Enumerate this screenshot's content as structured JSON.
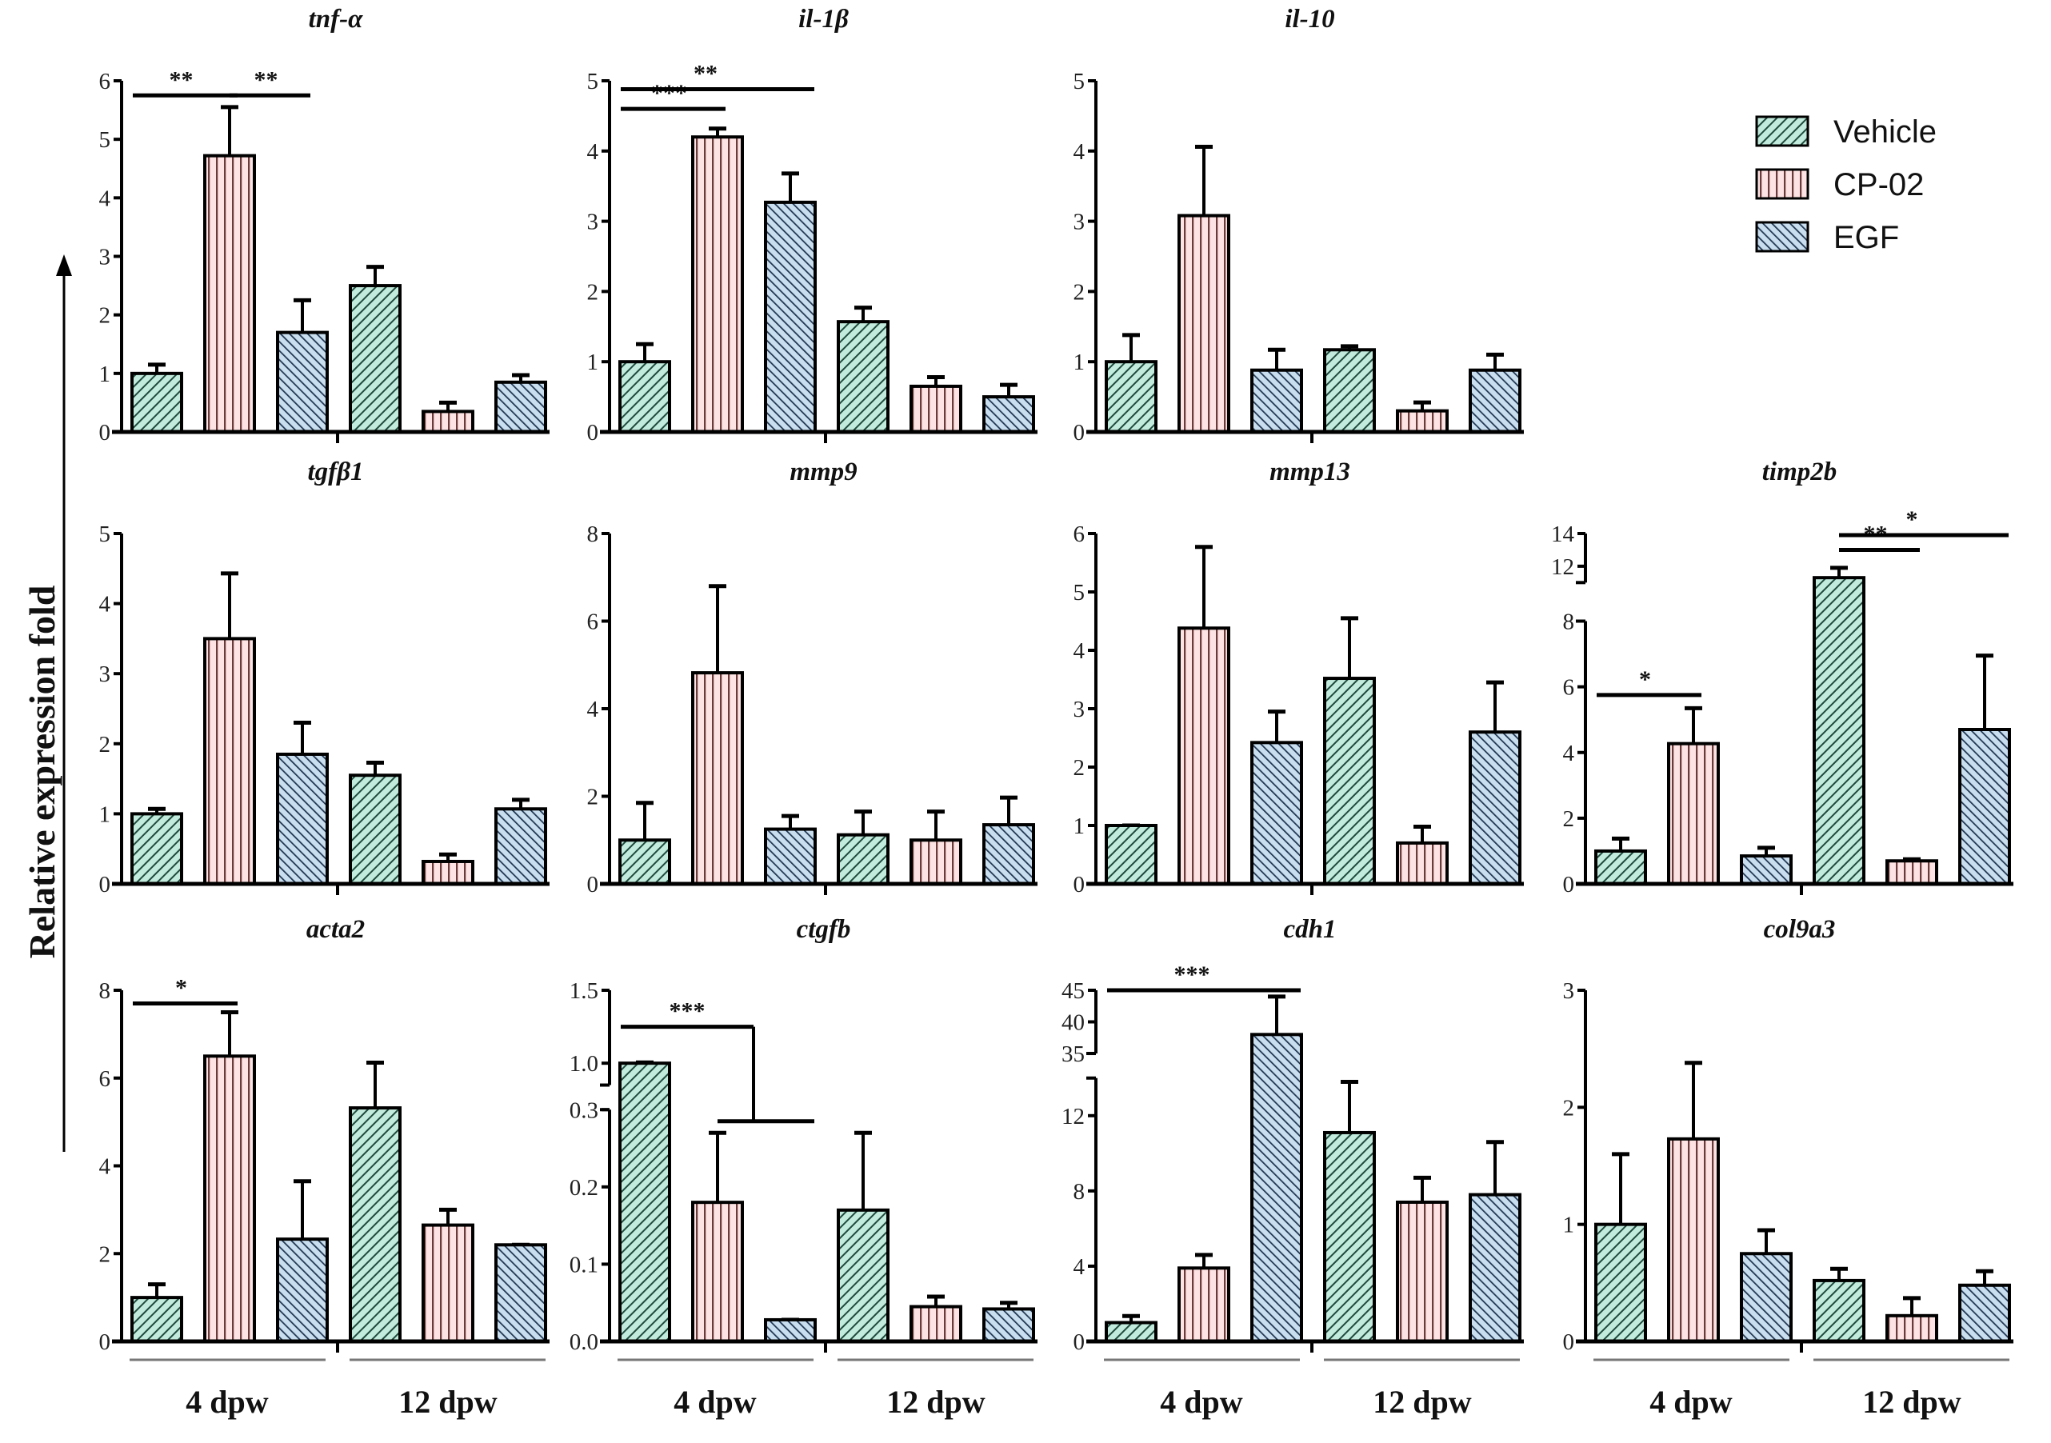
{
  "colors": {
    "vehicle_fill": "#c3ebdd",
    "vehicle_line": "#1f4a3d",
    "cp02_fill": "#fde3e3",
    "cp02_line": "#6b3a3a",
    "egf_fill": "#c9deee",
    "egf_line": "#1f3550",
    "axis": "#000000"
  },
  "chart_data": {
    "type": "bar",
    "ylabel": "Relative expression fold",
    "legend": {
      "position": "top-right",
      "entries": [
        "Vehicle",
        "CP-02",
        "EGF"
      ]
    },
    "groups": [
      "4 dpw",
      "12 dpw"
    ],
    "bar_order": [
      "Vehicle 4 dpw",
      "CP-02 4 dpw",
      "EGF 4 dpw",
      "Vehicle 12 dpw",
      "CP-02 12 dpw",
      "EGF 12 dpw"
    ],
    "panels": [
      {
        "title": "tnf-α",
        "ylim": [
          0,
          6
        ],
        "ticks": [
          0,
          1,
          2,
          3,
          4,
          5,
          6
        ],
        "values": [
          1.0,
          4.72,
          1.7,
          2.5,
          0.35,
          0.85
        ],
        "err_top": [
          1.15,
          5.55,
          2.25,
          2.82,
          0.5,
          0.97
        ],
        "sig": [
          {
            "from": 0,
            "to": 1,
            "y": 5.75,
            "label": "**"
          },
          {
            "from": 1,
            "to": 2,
            "y": 5.75,
            "label": "**"
          }
        ]
      },
      {
        "title": "il-1β",
        "ylim": [
          0,
          5
        ],
        "ticks": [
          0,
          1,
          2,
          3,
          4,
          5
        ],
        "values": [
          1.0,
          4.2,
          3.27,
          1.57,
          0.65,
          0.5
        ],
        "err_top": [
          1.25,
          4.32,
          3.68,
          1.77,
          0.78,
          0.67
        ],
        "sig": [
          {
            "from": 0,
            "to": 1,
            "y": 4.6,
            "label": "***"
          },
          {
            "from": 0,
            "to": 2,
            "y": 4.88,
            "label": "**"
          }
        ]
      },
      {
        "title": "il-10",
        "ylim": [
          0,
          5
        ],
        "ticks": [
          0,
          1,
          2,
          3,
          4,
          5
        ],
        "values": [
          1.0,
          3.08,
          0.88,
          1.17,
          0.3,
          0.88
        ],
        "err_top": [
          1.38,
          4.06,
          1.17,
          1.22,
          0.42,
          1.1
        ],
        "sig": []
      },
      {
        "title": "tgfβ1",
        "ylim": [
          0,
          5
        ],
        "ticks": [
          0,
          1,
          2,
          3,
          4,
          5
        ],
        "values": [
          1.0,
          3.5,
          1.85,
          1.55,
          0.32,
          1.07
        ],
        "err_top": [
          1.07,
          4.43,
          2.3,
          1.73,
          0.42,
          1.2
        ],
        "sig": []
      },
      {
        "title": "mmp9",
        "ylim": [
          0,
          8
        ],
        "ticks": [
          0,
          2,
          4,
          6,
          8
        ],
        "values": [
          1.0,
          4.82,
          1.25,
          1.12,
          1.0,
          1.35
        ],
        "err_top": [
          1.85,
          6.8,
          1.55,
          1.65,
          1.65,
          1.97
        ],
        "sig": []
      },
      {
        "title": "mmp13",
        "ylim": [
          0,
          6
        ],
        "ticks": [
          0,
          1,
          2,
          3,
          4,
          5,
          6
        ],
        "values": [
          1.0,
          4.38,
          2.42,
          3.52,
          0.7,
          2.6
        ],
        "err_top": [
          1.0,
          5.77,
          2.95,
          4.55,
          0.98,
          3.45
        ],
        "sig": []
      },
      {
        "title": "timp2b",
        "ylim": [
          0,
          14
        ],
        "axis_break": {
          "lower": [
            0,
            8
          ],
          "upper": [
            11,
            14
          ]
        },
        "ticks": [
          0,
          2,
          4,
          6,
          8,
          12,
          14
        ],
        "values": [
          1.0,
          4.27,
          0.85,
          11.3,
          0.7,
          4.7
        ],
        "err_top": [
          1.38,
          5.35,
          1.1,
          11.9,
          0.75,
          6.95
        ],
        "sig": [
          {
            "from": 0,
            "to": 1,
            "y": 5.75,
            "label": "*"
          },
          {
            "from": 3,
            "to": 4,
            "y": 13.0,
            "label": "**"
          },
          {
            "from": 3,
            "to": 5,
            "y": 13.9,
            "label": "*"
          }
        ]
      },
      {
        "title": "acta2",
        "ylim": [
          0,
          8
        ],
        "ticks": [
          0,
          2,
          4,
          6,
          8
        ],
        "values": [
          1.0,
          6.5,
          2.33,
          5.32,
          2.65,
          2.2
        ],
        "err_top": [
          1.3,
          7.5,
          3.65,
          6.35,
          3.0,
          2.2
        ],
        "sig": [
          {
            "from": 0,
            "to": 1,
            "y": 7.7,
            "label": "*"
          }
        ]
      },
      {
        "title": "ctgfb",
        "ylim": [
          0,
          1.5
        ],
        "axis_break": {
          "lower": [
            0,
            0.3
          ],
          "upper": [
            0.85,
            1.5
          ]
        },
        "ticks": [
          0,
          0.1,
          0.2,
          0.3,
          1.0,
          1.5
        ],
        "tick_labels": [
          "0.0",
          "0.1",
          "0.2",
          "0.3",
          "1.0",
          "1.5"
        ],
        "values": [
          1.0,
          0.18,
          0.028,
          0.17,
          0.045,
          0.042
        ],
        "err_top": [
          1.005,
          0.27,
          0.028,
          0.27,
          0.058,
          0.05
        ],
        "sig": [
          {
            "from": 0,
            "to": 1.5,
            "y": 1.25,
            "label": "***",
            "drop_to": 0.285,
            "sub_from": 1,
            "sub_to": 2
          }
        ]
      },
      {
        "title": "cdh1",
        "ylim": [
          0,
          45
        ],
        "axis_break": {
          "lower": [
            0,
            14
          ],
          "upper": [
            35,
            45
          ]
        },
        "ticks": [
          0,
          4,
          8,
          12,
          35,
          40,
          45
        ],
        "values": [
          1.0,
          3.9,
          38,
          11.1,
          7.4,
          7.8
        ],
        "err_top": [
          1.35,
          4.6,
          44,
          13.8,
          8.7,
          10.6
        ],
        "sig": [
          {
            "from": 0,
            "to": 2,
            "y": 45,
            "label": "***"
          }
        ]
      },
      {
        "title": "col9a3",
        "ylim": [
          0,
          3
        ],
        "ticks": [
          0,
          1,
          2,
          3
        ],
        "values": [
          1.0,
          1.73,
          0.75,
          0.52,
          0.22,
          0.48
        ],
        "err_top": [
          1.6,
          2.38,
          0.95,
          0.62,
          0.37,
          0.6
        ],
        "sig": []
      }
    ]
  }
}
